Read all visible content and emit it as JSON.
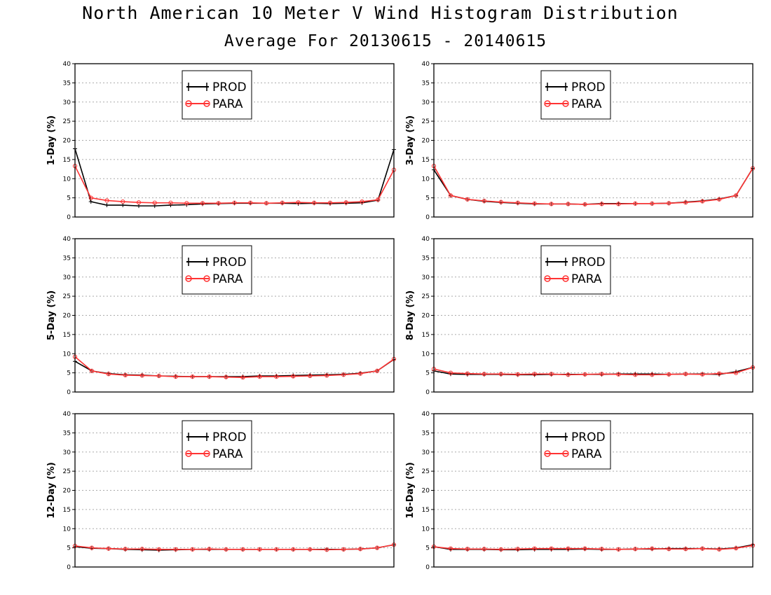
{
  "title": "North American 10 Meter V Wind Histogram Distribution",
  "subtitle": "Average For 20130615 - 20140615",
  "colors": {
    "PROD": "#000000",
    "PARA": "#ff3333",
    "grid": "#aaaaaa"
  },
  "chart_data": [
    {
      "type": "line",
      "ylabel": "1-Day (%)",
      "ylim": [
        0,
        40
      ],
      "yticks": [
        "0",
        "5",
        "10",
        "15",
        "20",
        "25",
        "30",
        "35",
        "40"
      ],
      "grid": true,
      "legend": [
        "PROD",
        "PARA"
      ],
      "series": [
        {
          "name": "PROD",
          "values": [
            17.8,
            4.0,
            3.1,
            3.1,
            2.9,
            2.9,
            3.1,
            3.2,
            3.4,
            3.5,
            3.6,
            3.6,
            3.6,
            3.6,
            3.5,
            3.6,
            3.5,
            3.6,
            3.7,
            4.4,
            17.6
          ]
        },
        {
          "name": "PARA",
          "values": [
            13.3,
            5.0,
            4.3,
            4.0,
            3.8,
            3.7,
            3.7,
            3.6,
            3.6,
            3.6,
            3.7,
            3.7,
            3.6,
            3.7,
            3.8,
            3.7,
            3.7,
            3.8,
            4.0,
            4.5,
            12.3
          ]
        }
      ]
    },
    {
      "type": "line",
      "ylabel": "3-Day (%)",
      "ylim": [
        0,
        40
      ],
      "yticks": [
        "0",
        "5",
        "10",
        "15",
        "20",
        "25",
        "30",
        "35",
        "40"
      ],
      "grid": true,
      "legend": [
        "PROD",
        "PARA"
      ],
      "series": [
        {
          "name": "PROD",
          "values": [
            12.3,
            5.6,
            4.6,
            4.1,
            3.8,
            3.6,
            3.4,
            3.4,
            3.4,
            3.3,
            3.5,
            3.5,
            3.5,
            3.5,
            3.6,
            3.9,
            4.2,
            4.7,
            5.6,
            12.7
          ]
        },
        {
          "name": "PARA",
          "values": [
            13.3,
            5.6,
            4.6,
            4.2,
            3.9,
            3.7,
            3.5,
            3.4,
            3.4,
            3.3,
            3.4,
            3.4,
            3.5,
            3.5,
            3.6,
            3.8,
            4.1,
            4.6,
            5.6,
            12.7
          ]
        }
      ]
    },
    {
      "type": "line",
      "ylabel": "5-Day (%)",
      "ylim": [
        0,
        40
      ],
      "yticks": [
        "0",
        "5",
        "10",
        "15",
        "20",
        "25",
        "30",
        "35",
        "40"
      ],
      "grid": true,
      "legend": [
        "PROD",
        "PARA"
      ],
      "series": [
        {
          "name": "PROD",
          "values": [
            8.0,
            5.5,
            4.8,
            4.5,
            4.4,
            4.2,
            4.1,
            4.0,
            4.0,
            4.0,
            4.0,
            4.2,
            4.2,
            4.3,
            4.4,
            4.5,
            4.6,
            4.9,
            5.5,
            8.5
          ]
        },
        {
          "name": "PARA",
          "values": [
            9.2,
            5.5,
            4.7,
            4.4,
            4.3,
            4.2,
            4.0,
            4.0,
            4.0,
            3.9,
            3.8,
            4.0,
            4.0,
            4.1,
            4.2,
            4.3,
            4.5,
            4.8,
            5.5,
            8.6
          ]
        }
      ]
    },
    {
      "type": "line",
      "ylabel": "8-Day (%)",
      "ylim": [
        0,
        40
      ],
      "yticks": [
        "0",
        "5",
        "10",
        "15",
        "20",
        "25",
        "30",
        "35",
        "40"
      ],
      "grid": true,
      "legend": [
        "PROD",
        "PARA"
      ],
      "series": [
        {
          "name": "PROD",
          "values": [
            5.5,
            4.7,
            4.6,
            4.6,
            4.6,
            4.5,
            4.5,
            4.6,
            4.6,
            4.6,
            4.6,
            4.7,
            4.7,
            4.7,
            4.6,
            4.7,
            4.7,
            4.6,
            5.3,
            6.4
          ]
        },
        {
          "name": "PARA",
          "values": [
            6.0,
            5.0,
            4.8,
            4.7,
            4.7,
            4.6,
            4.7,
            4.7,
            4.5,
            4.6,
            4.7,
            4.6,
            4.5,
            4.5,
            4.6,
            4.7,
            4.6,
            4.8,
            5.0,
            6.4
          ]
        }
      ]
    },
    {
      "type": "line",
      "ylabel": "12-Day (%)",
      "ylim": [
        0,
        40
      ],
      "yticks": [
        "0",
        "5",
        "10",
        "15",
        "20",
        "25",
        "30",
        "35",
        "40"
      ],
      "grid": true,
      "legend": [
        "PROD",
        "PARA"
      ],
      "series": [
        {
          "name": "PROD",
          "values": [
            5.3,
            4.9,
            4.8,
            4.6,
            4.5,
            4.4,
            4.5,
            4.6,
            4.6,
            4.6,
            4.6,
            4.6,
            4.6,
            4.6,
            4.6,
            4.6,
            4.6,
            4.7,
            5.0,
            5.8
          ]
        },
        {
          "name": "PARA",
          "values": [
            5.5,
            5.0,
            4.8,
            4.7,
            4.7,
            4.6,
            4.6,
            4.6,
            4.7,
            4.6,
            4.6,
            4.6,
            4.6,
            4.6,
            4.6,
            4.5,
            4.6,
            4.7,
            5.0,
            5.8
          ]
        }
      ]
    },
    {
      "type": "line",
      "ylabel": "16-Day (%)",
      "ylim": [
        0,
        40
      ],
      "yticks": [
        "0",
        "5",
        "10",
        "15",
        "20",
        "25",
        "30",
        "35",
        "40"
      ],
      "grid": true,
      "legend": [
        "PROD",
        "PARA"
      ],
      "series": [
        {
          "name": "PROD",
          "values": [
            5.3,
            4.6,
            4.6,
            4.6,
            4.5,
            4.5,
            4.6,
            4.6,
            4.6,
            4.7,
            4.6,
            4.6,
            4.7,
            4.7,
            4.8,
            4.8,
            4.8,
            4.7,
            5.0,
            5.8
          ]
        },
        {
          "name": "PARA",
          "values": [
            5.3,
            4.8,
            4.7,
            4.7,
            4.6,
            4.7,
            4.8,
            4.8,
            4.8,
            4.8,
            4.7,
            4.6,
            4.7,
            4.8,
            4.7,
            4.7,
            4.8,
            4.6,
            4.9,
            5.6
          ]
        }
      ]
    }
  ]
}
